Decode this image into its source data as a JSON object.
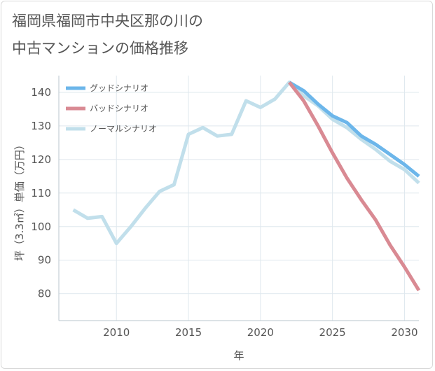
{
  "title": {
    "line1": "福岡県福岡市中央区那の川の",
    "line2": "中古マンションの価格推移"
  },
  "chart_data": {
    "type": "line",
    "title": "福岡県福岡市中央区那の川の中古マンションの価格推移",
    "xlabel": "年",
    "ylabel": "坪（3.3㎡）単価（万円）",
    "xlim": [
      2006,
      2031
    ],
    "ylim": [
      72,
      145
    ],
    "xticks": [
      2010,
      2015,
      2020,
      2025,
      2030
    ],
    "yticks": [
      80,
      90,
      100,
      110,
      120,
      130,
      140
    ],
    "grid": true,
    "legend_position": "top-left",
    "series": [
      {
        "name": "ノーマルシナリオ",
        "color": "#c1dfeb",
        "x": [
          2007,
          2008,
          2009,
          2010,
          2011,
          2012,
          2013,
          2014,
          2015,
          2016,
          2017,
          2018,
          2019,
          2020,
          2021,
          2022,
          2023,
          2024,
          2025,
          2026,
          2027,
          2028,
          2029,
          2030,
          2031
        ],
        "values": [
          105,
          102.5,
          103,
          95,
          100,
          105.5,
          110.5,
          112.5,
          127.5,
          129.5,
          127,
          127.5,
          137.5,
          135.5,
          138,
          143,
          139,
          136,
          132,
          129.5,
          126,
          123,
          119.5,
          117,
          113
        ]
      },
      {
        "name": "グッドシナリオ",
        "color": "#6cb6ea",
        "x": [
          2022,
          2023,
          2024,
          2025,
          2026,
          2027,
          2028,
          2029,
          2030,
          2031
        ],
        "values": [
          143,
          140.5,
          136.5,
          133,
          131,
          127,
          124.5,
          121.5,
          118.5,
          115
        ]
      },
      {
        "name": "バッドシナリオ",
        "color": "#d98a93",
        "x": [
          2022,
          2023,
          2024,
          2025,
          2026,
          2027,
          2028,
          2029,
          2030,
          2031
        ],
        "values": [
          143,
          137.5,
          130,
          122,
          114.5,
          108,
          102,
          94.5,
          88,
          81
        ]
      }
    ],
    "legend_order": [
      "グッドシナリオ",
      "バッドシナリオ",
      "ノーマルシナリオ"
    ]
  }
}
